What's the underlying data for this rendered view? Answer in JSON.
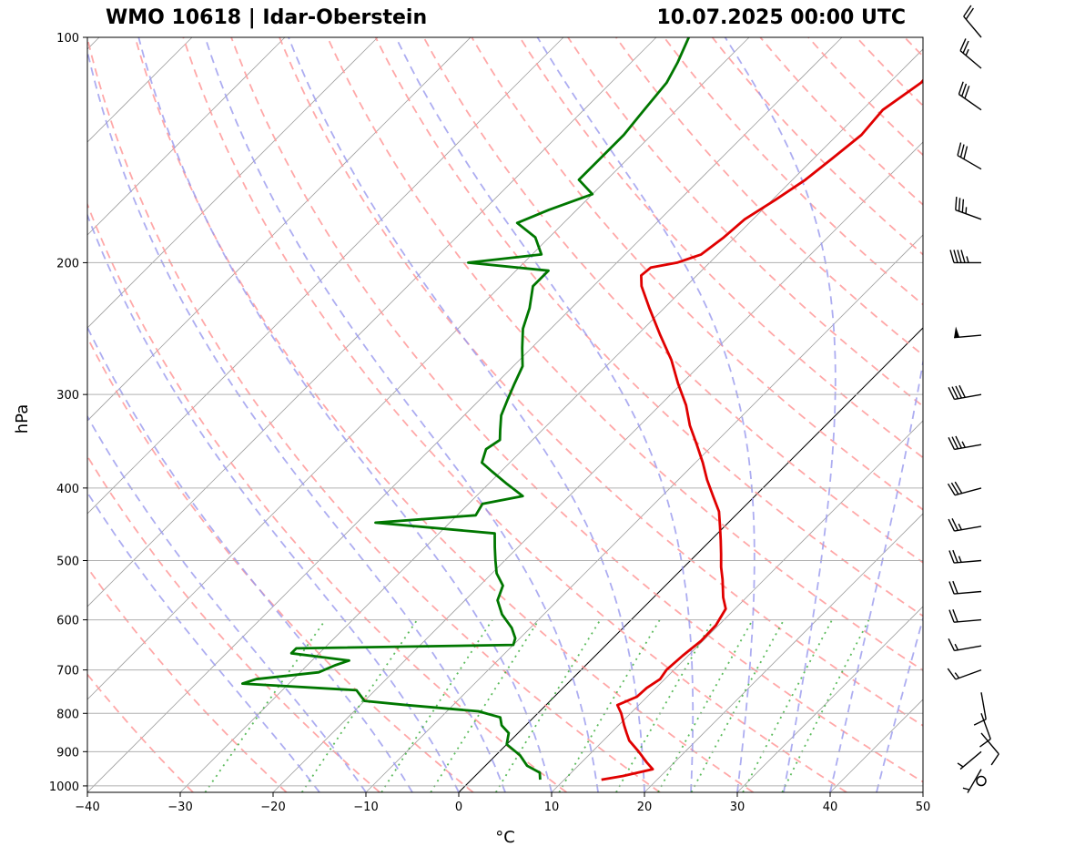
{
  "header": {
    "station": "WMO 10618 | Idar-Oberstein",
    "datetime": "10.07.2025 00:00 UTC"
  },
  "chart_data": {
    "type": "line",
    "chart_kind": "skew-T log-P sounding",
    "xlabel": "°C",
    "ylabel": "hPa",
    "xlim": [
      -40,
      50
    ],
    "ylim_pressure": [
      1020,
      100
    ],
    "x_ticks": [
      "−40",
      "−30",
      "−20",
      "−10",
      "0",
      "10",
      "20",
      "30",
      "40",
      "50"
    ],
    "y_ticks": [
      "100",
      "200",
      "300",
      "400",
      "500",
      "600",
      "700",
      "800",
      "900",
      "1000"
    ],
    "y_tick_values": [
      100,
      200,
      300,
      400,
      500,
      600,
      700,
      800,
      900,
      1000
    ],
    "grid": true,
    "log_pressure": true,
    "skewed_isotherms": true,
    "colors": {
      "temperature": "#e00000",
      "dewpoint": "#007700",
      "dry_adiabats": "#ff9999",
      "moist_adiabats": "#9999ee",
      "mixing_ratio": "#33aa33",
      "isotherms": "#888888",
      "zero_isotherm": "#000000",
      "wind_barbs": "#000000"
    },
    "series": [
      {
        "name": "temperature",
        "points": [
          [
            981,
            14.0
          ],
          [
            970,
            15.9
          ],
          [
            950,
            18.4
          ],
          [
            930,
            17.0
          ],
          [
            900,
            15.0
          ],
          [
            870,
            12.8
          ],
          [
            850,
            11.7
          ],
          [
            830,
            10.6
          ],
          [
            800,
            9.0
          ],
          [
            780,
            7.7
          ],
          [
            760,
            8.9
          ],
          [
            740,
            9.0
          ],
          [
            720,
            9.5
          ],
          [
            700,
            9.2
          ],
          [
            670,
            9.4
          ],
          [
            640,
            9.8
          ],
          [
            610,
            9.7
          ],
          [
            580,
            9.0
          ],
          [
            560,
            7.5
          ],
          [
            530,
            5.5
          ],
          [
            510,
            4.0
          ],
          [
            490,
            2.6
          ],
          [
            470,
            1.1
          ],
          [
            450,
            -0.5
          ],
          [
            430,
            -2.2
          ],
          [
            410,
            -4.5
          ],
          [
            390,
            -6.9
          ],
          [
            370,
            -9.2
          ],
          [
            350,
            -11.8
          ],
          [
            330,
            -14.6
          ],
          [
            310,
            -17.2
          ],
          [
            290,
            -20.4
          ],
          [
            270,
            -23.6
          ],
          [
            250,
            -27.5
          ],
          [
            230,
            -31.6
          ],
          [
            215,
            -34.8
          ],
          [
            208,
            -36.0
          ],
          [
            203,
            -35.8
          ],
          [
            200,
            -33.5
          ],
          [
            195,
            -31.8
          ],
          [
            185,
            -31.2
          ],
          [
            175,
            -30.9
          ],
          [
            165,
            -29.7
          ],
          [
            155,
            -28.6
          ],
          [
            145,
            -28.0
          ],
          [
            135,
            -27.4
          ],
          [
            125,
            -27.8
          ],
          [
            115,
            -26.6
          ],
          [
            108,
            -26.8
          ],
          [
            102,
            -25.2
          ]
        ]
      },
      {
        "name": "dewpoint",
        "points": [
          [
            981,
            7.4
          ],
          [
            960,
            6.6
          ],
          [
            940,
            4.5
          ],
          [
            910,
            2.6
          ],
          [
            880,
            0.0
          ],
          [
            850,
            -1.0
          ],
          [
            830,
            -2.6
          ],
          [
            810,
            -3.6
          ],
          [
            795,
            -6.6
          ],
          [
            780,
            -15.0
          ],
          [
            770,
            -20.0
          ],
          [
            745,
            -22.0
          ],
          [
            730,
            -35.0
          ],
          [
            720,
            -34.0
          ],
          [
            705,
            -28.0
          ],
          [
            690,
            -27.0
          ],
          [
            680,
            -26.0
          ],
          [
            665,
            -33.0
          ],
          [
            655,
            -33.0
          ],
          [
            648,
            -10.0
          ],
          [
            635,
            -10.5
          ],
          [
            615,
            -12.0
          ],
          [
            590,
            -14.5
          ],
          [
            565,
            -16.5
          ],
          [
            540,
            -17.5
          ],
          [
            520,
            -19.5
          ],
          [
            500,
            -21.0
          ],
          [
            480,
            -22.5
          ],
          [
            460,
            -24.0
          ],
          [
            445,
            -38.0
          ],
          [
            435,
            -28.0
          ],
          [
            420,
            -28.5
          ],
          [
            410,
            -25.0
          ],
          [
            395,
            -28.0
          ],
          [
            380,
            -31.0
          ],
          [
            370,
            -33.0
          ],
          [
            355,
            -34.0
          ],
          [
            345,
            -33.5
          ],
          [
            335,
            -34.5
          ],
          [
            320,
            -36.0
          ],
          [
            305,
            -37.0
          ],
          [
            290,
            -38.0
          ],
          [
            275,
            -39.0
          ],
          [
            260,
            -41.0
          ],
          [
            245,
            -43.0
          ],
          [
            230,
            -44.5
          ],
          [
            215,
            -46.5
          ],
          [
            205,
            -46.5
          ],
          [
            200,
            -56.0
          ],
          [
            195,
            -49.0
          ],
          [
            185,
            -51.5
          ],
          [
            177,
            -55.0
          ],
          [
            170,
            -53.0
          ],
          [
            162,
            -50.0
          ],
          [
            155,
            -53.0
          ],
          [
            145,
            -53.0
          ],
          [
            135,
            -53.0
          ],
          [
            125,
            -53.5
          ],
          [
            115,
            -54.0
          ],
          [
            108,
            -55.0
          ],
          [
            100,
            -56.5
          ]
        ]
      }
    ],
    "wind_barbs": [
      {
        "p": 985,
        "speed_kt": 0,
        "dir_deg": 0
      },
      {
        "p": 950,
        "speed_kt": 5,
        "dir_deg": 210
      },
      {
        "p": 900,
        "speed_kt": 5,
        "dir_deg": 230
      },
      {
        "p": 850,
        "speed_kt": 10,
        "dir_deg": 140
      },
      {
        "p": 800,
        "speed_kt": 10,
        "dir_deg": 160
      },
      {
        "p": 750,
        "speed_kt": 10,
        "dir_deg": 170
      },
      {
        "p": 700,
        "speed_kt": 15,
        "dir_deg": 250
      },
      {
        "p": 650,
        "speed_kt": 15,
        "dir_deg": 260
      },
      {
        "p": 600,
        "speed_kt": 20,
        "dir_deg": 265
      },
      {
        "p": 550,
        "speed_kt": 20,
        "dir_deg": 265
      },
      {
        "p": 500,
        "speed_kt": 25,
        "dir_deg": 265
      },
      {
        "p": 450,
        "speed_kt": 25,
        "dir_deg": 260
      },
      {
        "p": 400,
        "speed_kt": 30,
        "dir_deg": 255
      },
      {
        "p": 350,
        "speed_kt": 35,
        "dir_deg": 260
      },
      {
        "p": 300,
        "speed_kt": 40,
        "dir_deg": 260
      },
      {
        "p": 250,
        "speed_kt": 50,
        "dir_deg": 265
      },
      {
        "p": 200,
        "speed_kt": 45,
        "dir_deg": 270
      },
      {
        "p": 175,
        "speed_kt": 35,
        "dir_deg": 290
      },
      {
        "p": 150,
        "speed_kt": 30,
        "dir_deg": 300
      },
      {
        "p": 125,
        "speed_kt": 30,
        "dir_deg": 305
      },
      {
        "p": 110,
        "speed_kt": 25,
        "dir_deg": 310
      },
      {
        "p": 100,
        "speed_kt": 20,
        "dir_deg": 320
      }
    ]
  }
}
